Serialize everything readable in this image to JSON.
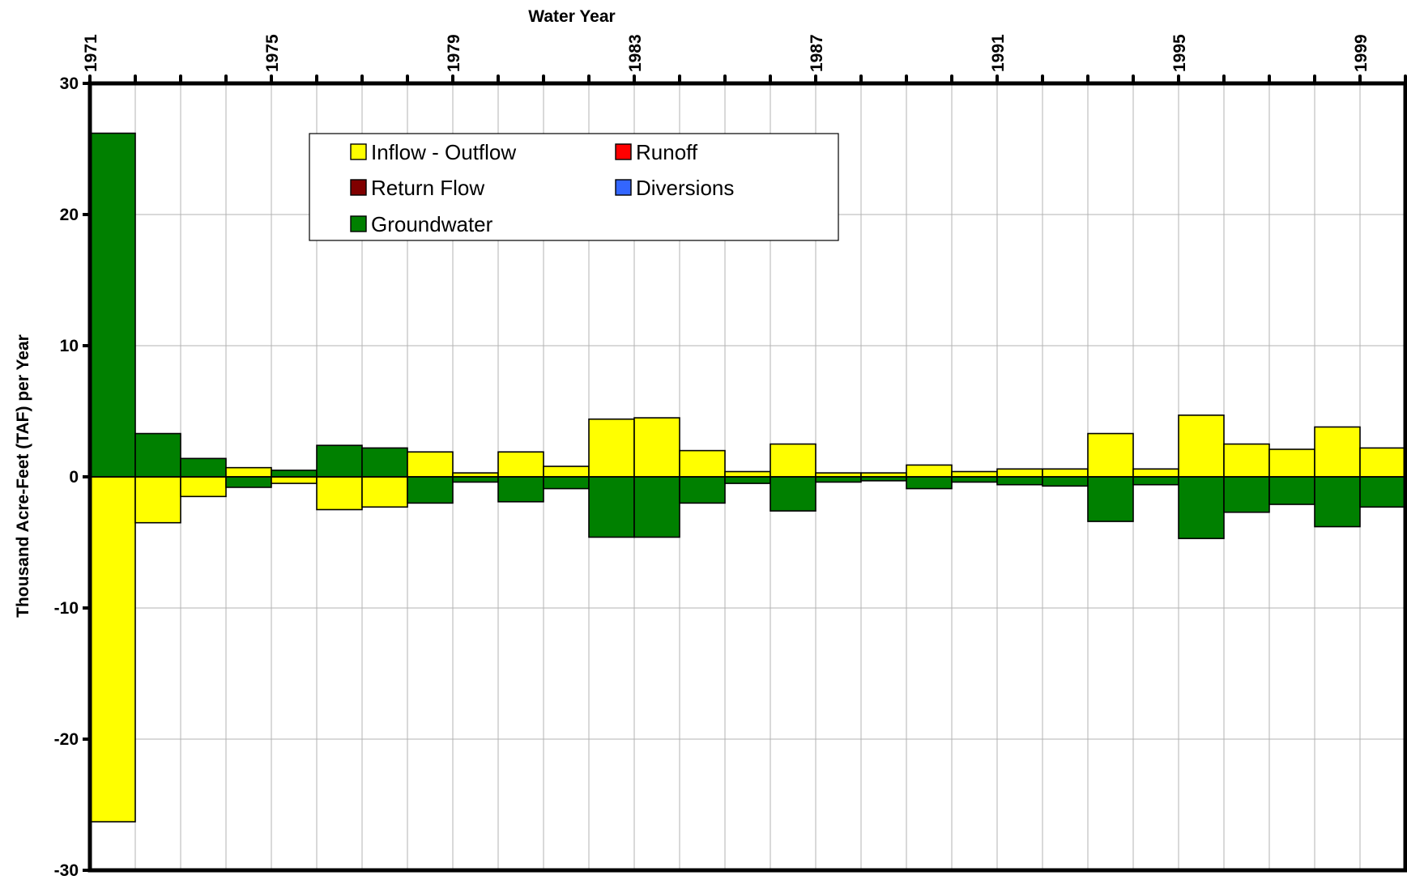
{
  "chart_data": {
    "type": "bar",
    "xlabel": "Water Year",
    "ylabel": "Thousand Acre-Feet (TAF) per Year",
    "ylim": [
      -30,
      30
    ],
    "yticks": [
      30,
      20,
      10,
      0,
      -10,
      -20,
      -30
    ],
    "xtick_labels": [
      "1971",
      "1975",
      "1979",
      "1983",
      "1987",
      "1991",
      "1995",
      "1999"
    ],
    "categories": [
      "1971",
      "1972",
      "1973",
      "1974",
      "1975",
      "1976",
      "1977",
      "1978",
      "1979",
      "1980",
      "1981",
      "1982",
      "1983",
      "1984",
      "1985",
      "1986",
      "1987",
      "1988",
      "1989",
      "1990",
      "1991",
      "1992",
      "1993",
      "1994",
      "1995",
      "1996",
      "1997",
      "1998",
      "1999"
    ],
    "x_axis_position": "top",
    "grid": true,
    "legend_position": "top-center",
    "legend_entries": [
      "Inflow - Outflow",
      "Runoff",
      "Return Flow",
      "Diversions",
      "Groundwater"
    ],
    "series": [
      {
        "name": "Inflow - Outflow",
        "color": "#ffff00",
        "values": [
          -26.3,
          -3.5,
          -1.5,
          0.7,
          -0.5,
          -2.5,
          -2.3,
          1.9,
          0.3,
          1.9,
          0.8,
          4.4,
          4.5,
          2.0,
          0.4,
          2.5,
          0.3,
          0.3,
          0.9,
          0.4,
          0.6,
          0.6,
          3.3,
          0.6,
          4.7,
          2.5,
          2.1,
          3.8,
          2.2
        ]
      },
      {
        "name": "Runoff",
        "color": "#ff0000",
        "values": [
          0,
          0,
          0,
          0,
          0,
          0,
          0,
          0,
          0,
          0,
          0,
          0,
          0,
          0,
          0,
          0,
          0,
          0,
          0,
          0,
          0,
          0,
          0,
          0,
          0,
          0,
          0,
          0,
          0
        ]
      },
      {
        "name": "Return Flow",
        "color": "#800000",
        "values": [
          0,
          0,
          0,
          0,
          0,
          0,
          0,
          0,
          0,
          0,
          0,
          0,
          0,
          0,
          0,
          0,
          0,
          0,
          0,
          0,
          0,
          0,
          0,
          0,
          0,
          0,
          0,
          0,
          0
        ]
      },
      {
        "name": "Diversions",
        "color": "#3366ff",
        "values": [
          0,
          0,
          0,
          0,
          0,
          0,
          0,
          0,
          0,
          0,
          0,
          0,
          0,
          0,
          0,
          0,
          0,
          0,
          0,
          0,
          0,
          0,
          0,
          0,
          0,
          0,
          0,
          0,
          0
        ]
      },
      {
        "name": "Groundwater",
        "color": "#008000",
        "values": [
          26.2,
          3.3,
          1.4,
          -0.8,
          0.5,
          2.4,
          2.2,
          -2.0,
          -0.4,
          -1.9,
          -0.9,
          -4.6,
          -4.6,
          -2.0,
          -0.5,
          -2.6,
          -0.4,
          -0.3,
          -0.9,
          -0.4,
          -0.6,
          -0.7,
          -3.4,
          -0.6,
          -4.7,
          -2.7,
          -2.1,
          -3.8,
          -2.3
        ]
      }
    ]
  }
}
